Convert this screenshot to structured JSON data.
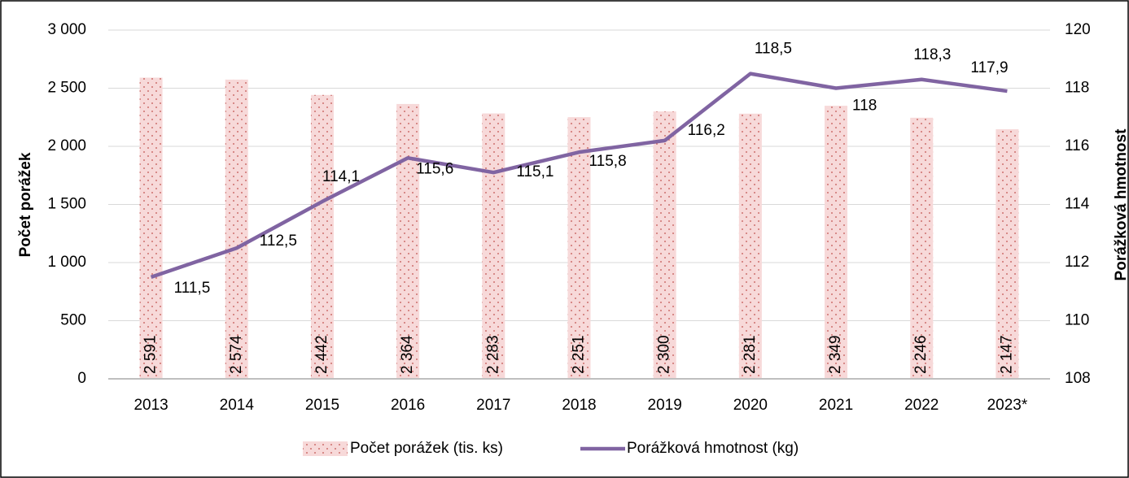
{
  "chart_data": {
    "type": "bar",
    "categories": [
      "2013",
      "2014",
      "2015",
      "2016",
      "2017",
      "2018",
      "2019",
      "2020",
      "2021",
      "2022",
      "2023*"
    ],
    "series": [
      {
        "name": "Počet porážek (tis. ks)",
        "type": "bar",
        "color": "#f2c4c4",
        "values": [
          2591,
          2574,
          2442,
          2364,
          2283,
          2251,
          2300,
          2281,
          2349,
          2246,
          2147
        ],
        "value_labels": [
          "2 591",
          "2 574",
          "2 442",
          "2 364",
          "2 283",
          "2 251",
          "2 300",
          "2 281",
          "2 349",
          "2 246",
          "2 147"
        ]
      },
      {
        "name": "Porážková hmotnost (kg)",
        "type": "line",
        "axis": "y2",
        "color": "#8064a2",
        "values": [
          111.5,
          112.5,
          114.1,
          115.6,
          115.1,
          115.8,
          116.2,
          118.5,
          118,
          118.3,
          117.9
        ],
        "value_labels": [
          "111,5",
          "112,5",
          "114,1",
          "115,6",
          "115,1",
          "115,8",
          "116,2",
          "118,5",
          "118",
          "118,3",
          "117,9"
        ]
      }
    ],
    "y_label": "Počet porážek",
    "y2_label": "Porážková hmotnost",
    "ylim": [
      0,
      3000
    ],
    "yticks": [
      0,
      500,
      {
        "value": 1000,
        "label": "1 000"
      },
      {
        "value": 1500,
        "label": "1 500"
      },
      {
        "value": 2000,
        "label": "2 000"
      },
      {
        "value": 2500,
        "label": "2 500"
      },
      {
        "value": 3000,
        "label": "3 000"
      }
    ],
    "y2lim": [
      108,
      120
    ],
    "y2ticks": [
      108,
      110,
      112,
      114,
      116,
      118,
      120
    ],
    "grid": true,
    "legend": "bottom"
  }
}
